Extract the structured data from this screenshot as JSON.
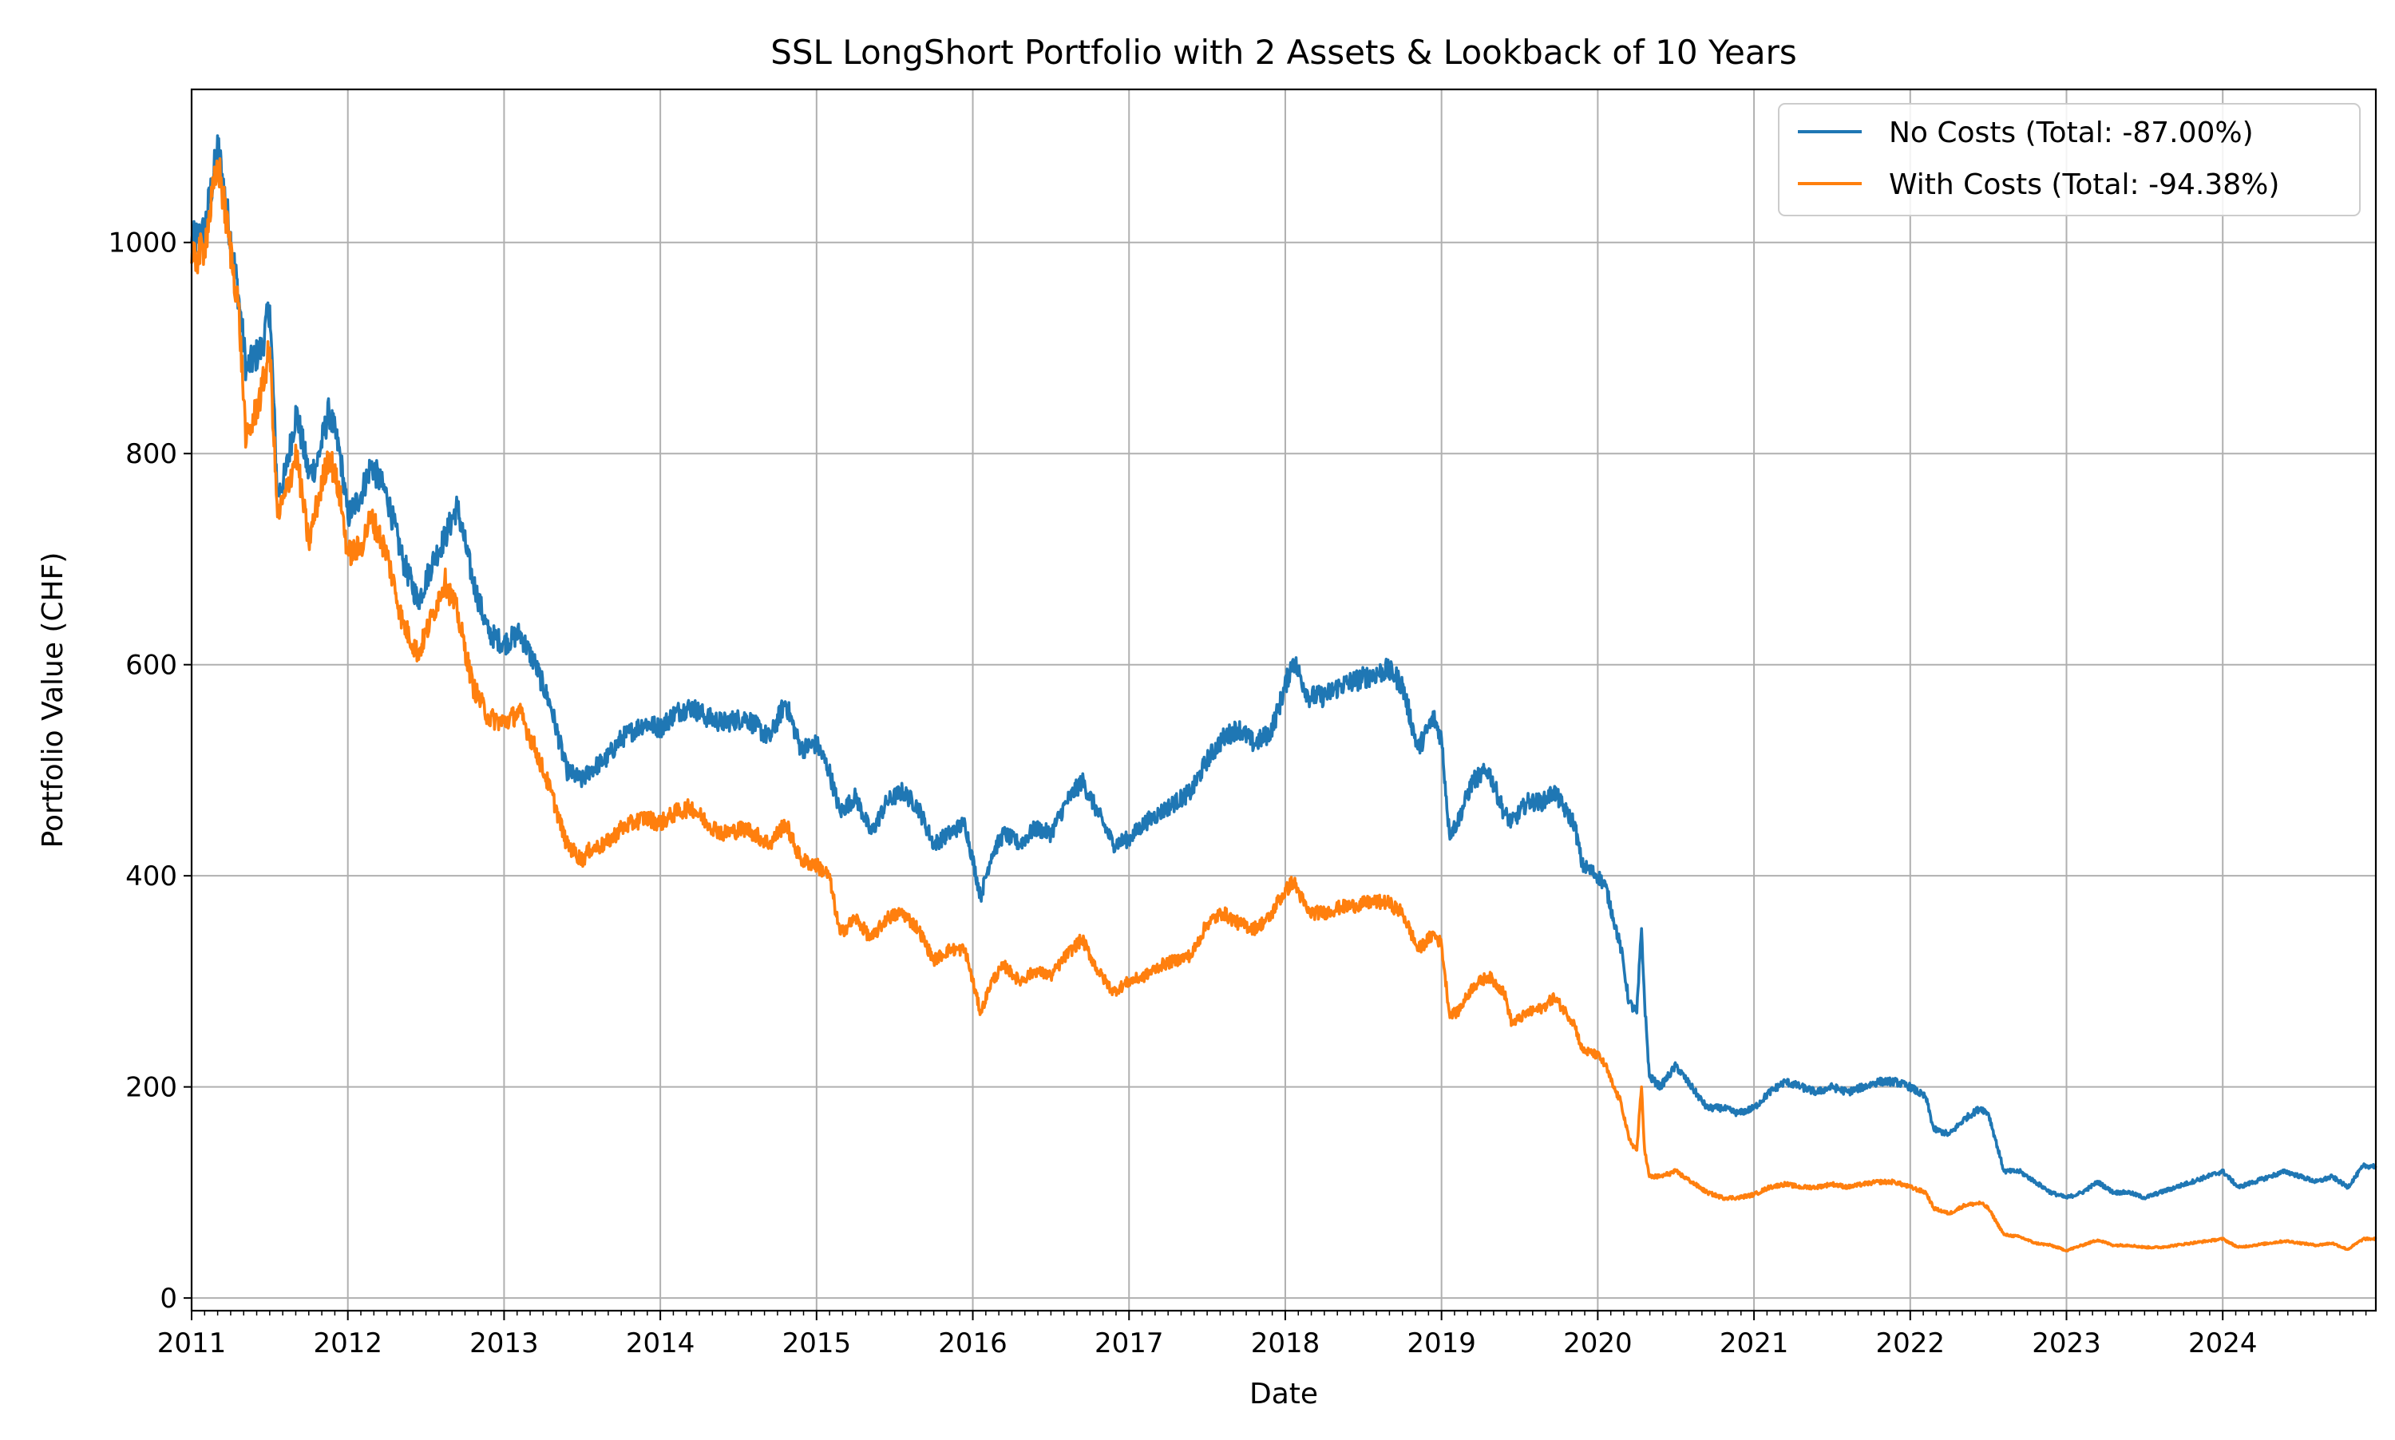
{
  "chart_data": {
    "type": "line",
    "title": "SSL LongShort Portfolio with 2 Assets & Lookback of 10 Years",
    "xlabel": "Date",
    "ylabel": "Portfolio Value (CHF)",
    "xlim": [
      2011.0,
      2024.98
    ],
    "ylim": [
      -12,
      1145
    ],
    "x_ticks": [
      "2011",
      "2012",
      "2013",
      "2014",
      "2015",
      "2016",
      "2017",
      "2018",
      "2019",
      "2020",
      "2021",
      "2022",
      "2023",
      "2024"
    ],
    "y_ticks": [
      0,
      200,
      400,
      600,
      800,
      1000
    ],
    "grid": true,
    "legend_position": "top-right",
    "series": [
      {
        "name": "No Costs (Total: -87.00%)",
        "color": "#1f77b4",
        "x": [
          2011.0,
          2011.08,
          2011.17,
          2011.3,
          2011.35,
          2011.45,
          2011.5,
          2011.55,
          2011.6,
          2011.67,
          2011.75,
          2011.8,
          2011.88,
          2011.95,
          2012.0,
          2012.08,
          2012.15,
          2012.25,
          2012.35,
          2012.45,
          2012.55,
          2012.62,
          2012.7,
          2012.8,
          2012.9,
          2013.0,
          2013.1,
          2013.2,
          2013.3,
          2013.4,
          2013.5,
          2013.55,
          2013.65,
          2013.75,
          2013.9,
          2014.0,
          2014.1,
          2014.2,
          2014.3,
          2014.4,
          2014.55,
          2014.7,
          2014.8,
          2014.9,
          2015.0,
          2015.08,
          2015.15,
          2015.25,
          2015.35,
          2015.45,
          2015.55,
          2015.65,
          2015.75,
          2015.85,
          2015.95,
          2016.05,
          2016.12,
          2016.2,
          2016.3,
          2016.4,
          2016.5,
          2016.6,
          2016.7,
          2016.8,
          2016.9,
          2017.0,
          2017.1,
          2017.2,
          2017.3,
          2017.4,
          2017.5,
          2017.6,
          2017.7,
          2017.8,
          2017.9,
          2017.95,
          2018.05,
          2018.15,
          2018.25,
          2018.35,
          2018.45,
          2018.55,
          2018.65,
          2018.7,
          2018.75,
          2018.85,
          2018.95,
          2019.0,
          2019.05,
          2019.1,
          2019.2,
          2019.3,
          2019.4,
          2019.45,
          2019.55,
          2019.65,
          2019.72,
          2019.8,
          2019.85,
          2019.9,
          2020.0,
          2020.05,
          2020.1,
          2020.15,
          2020.2,
          2020.25,
          2020.28,
          2020.3,
          2020.33,
          2020.4,
          2020.5,
          2020.6,
          2020.7,
          2020.8,
          2020.9,
          2021.0,
          2021.1,
          2021.2,
          2021.3,
          2021.4,
          2021.5,
          2021.6,
          2021.7,
          2021.8,
          2021.9,
          2022.0,
          2022.1,
          2022.15,
          2022.25,
          2022.35,
          2022.45,
          2022.5,
          2022.6,
          2022.7,
          2022.8,
          2022.9,
          2023.0,
          2023.1,
          2023.2,
          2023.3,
          2023.4,
          2023.5,
          2023.6,
          2023.7,
          2023.8,
          2023.9,
          2024.0,
          2024.1,
          2024.2,
          2024.3,
          2024.4,
          2024.5,
          2024.6,
          2024.7,
          2024.8,
          2024.9,
          2024.98
        ],
        "y": [
          1000,
          1010,
          1090,
          950,
          880,
          900,
          940,
          760,
          780,
          840,
          780,
          790,
          840,
          800,
          740,
          760,
          790,
          760,
          700,
          660,
          700,
          720,
          750,
          680,
          630,
          620,
          630,
          600,
          560,
          500,
          490,
          500,
          510,
          530,
          545,
          540,
          555,
          560,
          550,
          545,
          550,
          530,
          565,
          520,
          525,
          500,
          460,
          475,
          440,
          470,
          480,
          465,
          430,
          440,
          450,
          380,
          420,
          440,
          430,
          445,
          440,
          470,
          490,
          460,
          430,
          435,
          450,
          460,
          470,
          480,
          510,
          530,
          540,
          525,
          535,
          555,
          605,
          570,
          570,
          580,
          585,
          590,
          595,
          590,
          580,
          520,
          550,
          530,
          440,
          450,
          490,
          500,
          460,
          450,
          470,
          470,
          480,
          460,
          450,
          410,
          400,
          390,
          360,
          330,
          280,
          270,
          350,
          280,
          210,
          200,
          220,
          200,
          180,
          180,
          175,
          180,
          195,
          205,
          200,
          195,
          200,
          195,
          200,
          205,
          205,
          200,
          190,
          160,
          155,
          170,
          180,
          175,
          120,
          120,
          110,
          100,
          95,
          100,
          110,
          100,
          100,
          95,
          100,
          105,
          110,
          115,
          120,
          105,
          110,
          115,
          120,
          115,
          110,
          115,
          105,
          125,
          125
        ]
      },
      {
        "name": "With Costs (Total: -94.38%)",
        "color": "#ff7f0e",
        "x": [
          2011.0,
          2011.08,
          2011.17,
          2011.3,
          2011.35,
          2011.45,
          2011.5,
          2011.55,
          2011.6,
          2011.67,
          2011.75,
          2011.8,
          2011.88,
          2011.95,
          2012.0,
          2012.08,
          2012.15,
          2012.25,
          2012.35,
          2012.45,
          2012.55,
          2012.62,
          2012.7,
          2012.8,
          2012.9,
          2013.0,
          2013.1,
          2013.2,
          2013.3,
          2013.4,
          2013.5,
          2013.55,
          2013.65,
          2013.75,
          2013.9,
          2014.0,
          2014.1,
          2014.2,
          2014.3,
          2014.4,
          2014.55,
          2014.7,
          2014.8,
          2014.9,
          2015.0,
          2015.08,
          2015.15,
          2015.25,
          2015.35,
          2015.45,
          2015.55,
          2015.65,
          2015.75,
          2015.85,
          2015.95,
          2016.05,
          2016.12,
          2016.2,
          2016.3,
          2016.4,
          2016.5,
          2016.6,
          2016.7,
          2016.8,
          2016.9,
          2017.0,
          2017.1,
          2017.2,
          2017.3,
          2017.4,
          2017.5,
          2017.6,
          2017.7,
          2017.8,
          2017.9,
          2017.95,
          2018.05,
          2018.15,
          2018.25,
          2018.35,
          2018.45,
          2018.55,
          2018.65,
          2018.7,
          2018.75,
          2018.85,
          2018.95,
          2019.0,
          2019.05,
          2019.1,
          2019.2,
          2019.3,
          2019.4,
          2019.45,
          2019.55,
          2019.65,
          2019.72,
          2019.8,
          2019.85,
          2019.9,
          2020.0,
          2020.05,
          2020.1,
          2020.15,
          2020.2,
          2020.25,
          2020.28,
          2020.3,
          2020.33,
          2020.4,
          2020.5,
          2020.6,
          2020.7,
          2020.8,
          2020.9,
          2021.0,
          2021.1,
          2021.2,
          2021.3,
          2021.4,
          2021.5,
          2021.6,
          2021.7,
          2021.8,
          2021.9,
          2022.0,
          2022.1,
          2022.15,
          2022.25,
          2022.35,
          2022.45,
          2022.5,
          2022.6,
          2022.7,
          2022.8,
          2022.9,
          2023.0,
          2023.1,
          2023.2,
          2023.3,
          2023.4,
          2023.5,
          2023.6,
          2023.7,
          2023.8,
          2023.9,
          2024.0,
          2024.1,
          2024.2,
          2024.3,
          2024.4,
          2024.5,
          2024.6,
          2024.7,
          2024.8,
          2024.9,
          2024.98
        ],
        "y": [
          980,
          995,
          1075,
          940,
          810,
          860,
          900,
          740,
          760,
          800,
          715,
          750,
          800,
          760,
          705,
          710,
          740,
          705,
          640,
          610,
          650,
          680,
          650,
          580,
          550,
          545,
          555,
          520,
          480,
          430,
          415,
          425,
          430,
          445,
          455,
          450,
          460,
          465,
          450,
          440,
          445,
          430,
          450,
          415,
          410,
          400,
          345,
          360,
          340,
          360,
          365,
          350,
          320,
          330,
          330,
          270,
          300,
          315,
          300,
          310,
          305,
          325,
          340,
          310,
          290,
          300,
          305,
          315,
          320,
          325,
          355,
          365,
          355,
          350,
          360,
          375,
          395,
          365,
          365,
          370,
          372,
          375,
          375,
          370,
          365,
          330,
          345,
          335,
          270,
          270,
          295,
          305,
          290,
          260,
          270,
          275,
          285,
          270,
          260,
          235,
          230,
          220,
          200,
          185,
          150,
          140,
          200,
          140,
          115,
          115,
          120,
          110,
          100,
          95,
          95,
          98,
          105,
          108,
          105,
          105,
          108,
          105,
          108,
          110,
          110,
          105,
          100,
          85,
          80,
          88,
          90,
          85,
          60,
          58,
          52,
          50,
          45,
          50,
          55,
          50,
          50,
          48,
          48,
          50,
          52,
          54,
          56,
          48,
          50,
          52,
          54,
          52,
          50,
          52,
          46,
          56,
          56
        ]
      }
    ]
  }
}
